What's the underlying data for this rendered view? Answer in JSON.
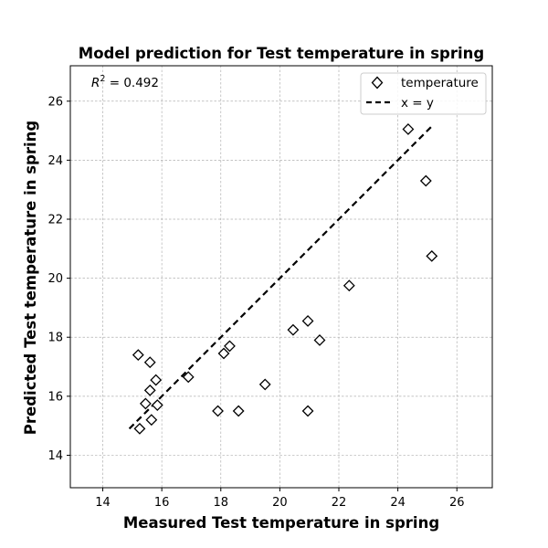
{
  "chart_data": {
    "type": "scatter",
    "title": "Model prediction for Test temperature in spring",
    "xlabel": "Measured Test temperature in spring",
    "ylabel": "Predicted Test temperature in spring",
    "xlim": [
      12.9,
      27.2
    ],
    "ylim": [
      12.9,
      27.2
    ],
    "xticks": [
      14,
      16,
      18,
      20,
      22,
      24,
      26
    ],
    "yticks": [
      14,
      16,
      18,
      20,
      22,
      24,
      26
    ],
    "grid": true,
    "legend_position": "top-right",
    "annotation": {
      "symbol": "R",
      "superscript": "2",
      "text": " = 0.492"
    },
    "series": [
      {
        "name": "temperature",
        "marker": "diamond",
        "color": "#000000",
        "points": [
          {
            "x": 15.2,
            "y": 17.4
          },
          {
            "x": 15.6,
            "y": 17.15
          },
          {
            "x": 15.8,
            "y": 16.55
          },
          {
            "x": 15.6,
            "y": 16.2
          },
          {
            "x": 15.45,
            "y": 15.75
          },
          {
            "x": 15.85,
            "y": 15.7
          },
          {
            "x": 15.65,
            "y": 15.2
          },
          {
            "x": 15.25,
            "y": 14.9
          },
          {
            "x": 16.9,
            "y": 16.65
          },
          {
            "x": 17.9,
            "y": 15.5
          },
          {
            "x": 18.1,
            "y": 17.45
          },
          {
            "x": 18.3,
            "y": 17.7
          },
          {
            "x": 18.6,
            "y": 15.5
          },
          {
            "x": 19.5,
            "y": 16.4
          },
          {
            "x": 20.45,
            "y": 18.25
          },
          {
            "x": 20.95,
            "y": 18.55
          },
          {
            "x": 20.95,
            "y": 15.5
          },
          {
            "x": 21.35,
            "y": 17.9
          },
          {
            "x": 22.35,
            "y": 19.75
          },
          {
            "x": 24.35,
            "y": 25.05
          },
          {
            "x": 24.95,
            "y": 23.3
          },
          {
            "x": 25.15,
            "y": 20.75
          }
        ]
      },
      {
        "name": "x = y",
        "style": "dashed",
        "color": "#000000",
        "points": [
          {
            "x": 14.9,
            "y": 14.9
          },
          {
            "x": 25.15,
            "y": 25.15
          }
        ]
      }
    ]
  }
}
